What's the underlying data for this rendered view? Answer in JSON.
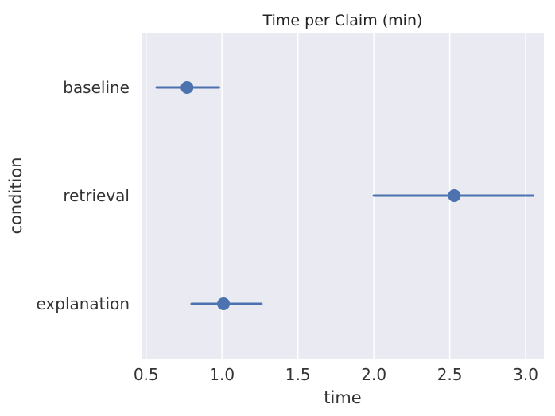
{
  "chart_data": {
    "type": "pointplot",
    "title": "Time per Claim (min)",
    "xlabel": "time",
    "ylabel": "condition",
    "xlim": [
      0.47,
      3.12
    ],
    "xticks": [
      0.5,
      1.0,
      1.5,
      2.0,
      2.5,
      3.0
    ],
    "xtick_labels": [
      "0.5",
      "1.0",
      "1.5",
      "2.0",
      "2.5",
      "3.0"
    ],
    "categories": [
      "baseline",
      "retrieval",
      "explanation"
    ],
    "values": [
      0.77,
      2.53,
      1.01
    ],
    "ci_low": [
      0.57,
      2.0,
      0.8
    ],
    "ci_high": [
      0.98,
      3.05,
      1.26
    ],
    "grid": "x",
    "colors": {
      "background": "#eaeaf2",
      "grid": "#ffffff",
      "series": "#4c72b0"
    }
  }
}
